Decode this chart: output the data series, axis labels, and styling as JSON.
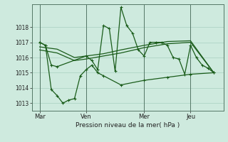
{
  "bg_color": "#ceeade",
  "grid_color": "#a8cfc0",
  "line_color": "#1a5c1a",
  "xlabel": "Pression niveau de la mer( hPa )",
  "ylim": [
    1012.5,
    1019.5
  ],
  "yticks": [
    1013,
    1014,
    1015,
    1016,
    1017,
    1018
  ],
  "xtick_labels": [
    "Mar",
    "Ven",
    "Mer",
    "Jeu"
  ],
  "xtick_positions": [
    0,
    48,
    108,
    156
  ],
  "vlines": [
    0,
    48,
    108,
    156
  ],
  "xlim": [
    -8,
    190
  ],
  "series_volatile": {
    "x": [
      0,
      6,
      12,
      18,
      48,
      54,
      60,
      66,
      72,
      78,
      84,
      90,
      96,
      102,
      108,
      114,
      120,
      126,
      132,
      138,
      144,
      150,
      156,
      162,
      168,
      174,
      180
    ],
    "y": [
      1017.0,
      1016.8,
      1015.5,
      1015.4,
      1016.1,
      1015.8,
      1015.2,
      1018.1,
      1017.9,
      1015.1,
      1019.3,
      1018.1,
      1017.6,
      1016.5,
      1016.1,
      1017.0,
      1017.0,
      1017.0,
      1016.8,
      1016.0,
      1015.9,
      1014.9,
      1016.8,
      1016.0,
      1015.5,
      1015.3,
      1015.0
    ]
  },
  "series_smooth_upper": {
    "x": [
      0,
      18,
      36,
      48,
      66,
      84,
      108,
      132,
      156,
      180
    ],
    "y": [
      1016.7,
      1016.55,
      1016.0,
      1016.1,
      1016.25,
      1016.5,
      1016.8,
      1017.05,
      1017.1,
      1015.0
    ]
  },
  "series_smooth_lower": {
    "x": [
      0,
      18,
      36,
      48,
      66,
      84,
      108,
      132,
      156,
      180
    ],
    "y": [
      1016.5,
      1016.3,
      1015.8,
      1015.9,
      1016.1,
      1016.3,
      1016.65,
      1016.9,
      1017.0,
      1015.0
    ]
  },
  "series_bottom": {
    "x": [
      0,
      6,
      12,
      18,
      24,
      30,
      36,
      42,
      48,
      54,
      60,
      66,
      84,
      108,
      132,
      156,
      180
    ],
    "y": [
      1017.0,
      1016.8,
      1013.9,
      1013.5,
      1013.0,
      1013.2,
      1013.3,
      1014.8,
      1015.2,
      1015.5,
      1015.0,
      1014.8,
      1014.2,
      1014.5,
      1014.7,
      1014.9,
      1015.0
    ]
  }
}
